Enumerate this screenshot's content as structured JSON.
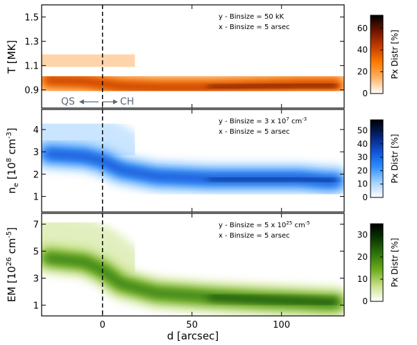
{
  "chart_data": [
    {
      "type": "heatmap",
      "ylabel_main": "T [MK]",
      "ylim": [
        0.75,
        1.6
      ],
      "yticks": [
        0.9,
        1.1,
        1.3,
        1.5
      ],
      "ytick_labels": [
        "0.9",
        "1.1",
        "1.3",
        "1.5"
      ],
      "colorbar": {
        "label": "Px Distr [%]",
        "range": [
          0,
          72
        ],
        "ticks": [
          0,
          20,
          40,
          60
        ],
        "tick_labels": [
          "0",
          "20",
          "40",
          "60"
        ],
        "colors": [
          "#ffffff",
          "#ffb266",
          "#ff7a00",
          "#c43c00",
          "#6e1400",
          "#000000"
        ]
      },
      "annotation": [
        "y - Binsize = 50 kK",
        "x - Binsize = 5 arsec"
      ],
      "qs_label": "QS",
      "ch_label": "CH",
      "ridge": [
        [
          -30,
          0.98
        ],
        [
          -10,
          0.97
        ],
        [
          0,
          0.95
        ],
        [
          10,
          0.93
        ],
        [
          30,
          0.92
        ],
        [
          60,
          0.92
        ],
        [
          90,
          0.93
        ],
        [
          110,
          0.94
        ],
        [
          125,
          0.94
        ],
        [
          130,
          0.94
        ]
      ]
    },
    {
      "type": "heatmap",
      "ylabel_main": "n",
      "ylabel_sub": "e",
      "ylabel_rest": " [10",
      "ylabel_sup": "8",
      "ylabel_end": " cm",
      "ylabel_sup2": "-3",
      "ylabel_close": "]",
      "ylim": [
        0.3,
        4.9
      ],
      "yticks": [
        1,
        2,
        3,
        4
      ],
      "ytick_labels": [
        "1",
        "2",
        "3",
        "4"
      ],
      "colorbar": {
        "label": "Px Distr [%]",
        "range": [
          0,
          58
        ],
        "ticks": [
          0,
          10,
          20,
          30,
          40,
          50
        ],
        "tick_labels": [
          "0",
          "10",
          "20",
          "30",
          "40",
          "50"
        ],
        "colors": [
          "#ffffff",
          "#9fd0ff",
          "#2a8cff",
          "#1050d0",
          "#04206e",
          "#000000"
        ]
      },
      "annotation_prefix": "y - Binsize = 3 x 10",
      "annotation_sup": "7",
      "annotation_unit": " cm",
      "annotation_unit_sup": "-3",
      "annotation2": "x - Binsize = 5 arsec",
      "ridge": [
        [
          -30,
          2.9
        ],
        [
          -10,
          2.8
        ],
        [
          0,
          2.6
        ],
        [
          10,
          2.2
        ],
        [
          30,
          1.9
        ],
        [
          60,
          1.8
        ],
        [
          90,
          1.8
        ],
        [
          110,
          1.8
        ],
        [
          125,
          1.7
        ],
        [
          130,
          1.7
        ]
      ]
    },
    {
      "type": "heatmap",
      "ylabel_main": "EM [10",
      "ylabel_sup": "26",
      "ylabel_end": " cm",
      "ylabel_sup2": "-5",
      "ylabel_close": "]",
      "ylim": [
        0.2,
        7.8
      ],
      "yticks": [
        1,
        3,
        5,
        7
      ],
      "ytick_labels": [
        "1",
        "3",
        "5",
        "7"
      ],
      "colorbar": {
        "label": "Px Distr [%]",
        "range": [
          0,
          35
        ],
        "ticks": [
          0,
          10,
          20,
          30
        ],
        "tick_labels": [
          "0",
          "10",
          "20",
          "30"
        ],
        "colors": [
          "#ffffff",
          "#c9e28a",
          "#6fae1c",
          "#2f7a0a",
          "#0c3a02",
          "#000000"
        ]
      },
      "annotation_prefix": "y - Binsize = 5 x 10",
      "annotation_sup": "25",
      "annotation_unit": " cm",
      "annotation_unit_sup": "-5",
      "annotation2": "x - Binsize = 5 arsec",
      "ridge": [
        [
          -30,
          4.5
        ],
        [
          -10,
          4.2
        ],
        [
          0,
          3.6
        ],
        [
          10,
          2.6
        ],
        [
          30,
          1.9
        ],
        [
          60,
          1.6
        ],
        [
          90,
          1.4
        ],
        [
          110,
          1.3
        ],
        [
          125,
          1.2
        ],
        [
          130,
          1.2
        ]
      ]
    }
  ],
  "xaxis": {
    "label": "d [arcsec]",
    "xlim": [
      -34,
      135
    ],
    "ticks": [
      0,
      50,
      100
    ],
    "tick_labels": [
      "0",
      "50",
      "100"
    ]
  }
}
